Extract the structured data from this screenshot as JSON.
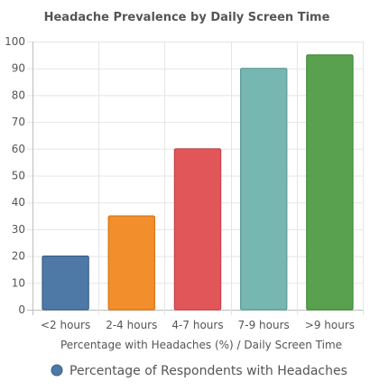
{
  "chart_data": {
    "type": "bar",
    "title": "Headache Prevalence by Daily Screen Time",
    "xlabel": "Percentage with Headaches (%) / Daily Screen Time",
    "ylabel": "",
    "categories": [
      "<2 hours",
      "2-4 hours",
      "4-7 hours",
      "7-9 hours",
      ">9 hours"
    ],
    "series": [
      {
        "name": "Percentage of Respondents with Headaches",
        "values": [
          20,
          35,
          60,
          90,
          95
        ]
      }
    ],
    "ylim": [
      0,
      100
    ],
    "yticks": [
      0,
      10,
      20,
      30,
      40,
      50,
      60,
      70,
      80,
      90,
      100
    ],
    "grid": true,
    "legend_position": "bottom",
    "bar_colors": [
      "#4e79a7",
      "#f28e2b",
      "#e15759",
      "#76b7b2",
      "#59a14f"
    ],
    "bar_borders": [
      "#3b5f86",
      "#d9761a",
      "#c4434a",
      "#5e9c97",
      "#3f8a3a"
    ],
    "legend_color": "#4e79a7"
  }
}
